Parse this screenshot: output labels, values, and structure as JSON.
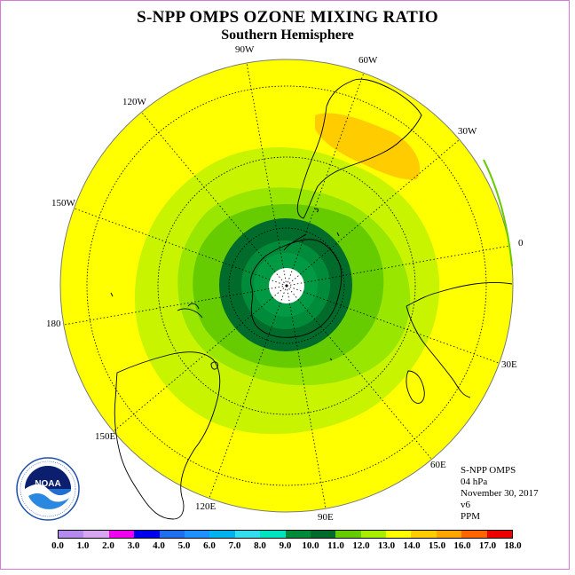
{
  "header": {
    "title": "S-NPP OMPS OZONE MIXING RATIO",
    "subtitle": "Southern Hemisphere"
  },
  "longitude_labels": {
    "w90": "90W",
    "w60": "60W",
    "w120": "120W",
    "w30": "30W",
    "w150": "150W",
    "zero": "0",
    "d180": "180",
    "e30": "30E",
    "e150": "150E",
    "e60": "60E",
    "e120": "120E",
    "e90": "90E"
  },
  "info": {
    "instrument": "S-NPP OMPS",
    "level": "04 hPa",
    "date": "November 30, 2017",
    "version": "v6",
    "units": "PPM"
  },
  "colorbar": {
    "ticks": [
      "0.0",
      "1.0",
      "2.0",
      "3.0",
      "4.0",
      "5.0",
      "6.0",
      "7.0",
      "8.0",
      "9.0",
      "10.0",
      "11.0",
      "12.0",
      "13.0",
      "14.0",
      "15.0",
      "16.0",
      "17.0",
      "18.0"
    ],
    "colors": [
      "#b58aef",
      "#d8a6f0",
      "#ee00ee",
      "#0000ee",
      "#1e6ef0",
      "#1e90ff",
      "#00b2ee",
      "#33ddee",
      "#00e5c0",
      "#008b3a",
      "#006b2a",
      "#66cc00",
      "#a8ee00",
      "#ffff00",
      "#ffcc00",
      "#ffa500",
      "#ff6600",
      "#ee0000",
      "#8b5a3c"
    ]
  },
  "logo": {
    "text": "NOAA",
    "icon": "noaa-logo-icon"
  },
  "map_fields": {
    "background_level": "13.0",
    "levels_present": [
      "9.0",
      "10.0",
      "11.0",
      "12.0",
      "13.0",
      "14.0"
    ]
  }
}
